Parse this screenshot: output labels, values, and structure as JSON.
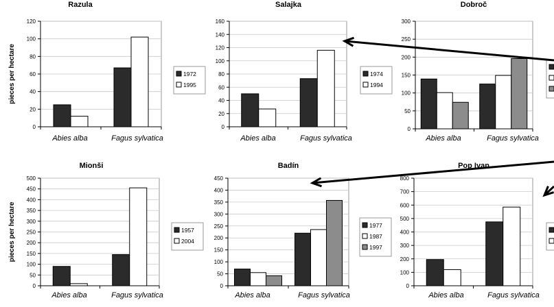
{
  "colors": {
    "s1": "#2b2b2b",
    "s2": "#ffffff",
    "s3": "#8c8c8c",
    "black": "#000000",
    "plot_bg": "#ffffff",
    "grid": "#c8c8c8"
  },
  "chart_data": [
    {
      "type": "bar",
      "title": "Razula",
      "ylabel": "pieces per hectare",
      "categories": [
        "Abies alba",
        "Fagus sylvatica"
      ],
      "ylim": [
        0,
        120
      ],
      "ystep": 20,
      "series": [
        {
          "name": "1972",
          "values": [
            25,
            67
          ]
        },
        {
          "name": "1995",
          "values": [
            12,
            102
          ]
        }
      ]
    },
    {
      "type": "bar",
      "title": "Salajka",
      "ylabel": "",
      "categories": [
        "Abies alba",
        "Fagus sylvatica"
      ],
      "ylim": [
        0,
        160
      ],
      "ystep": 20,
      "series": [
        {
          "name": "1974",
          "values": [
            50,
            73
          ]
        },
        {
          "name": "1994",
          "values": [
            27,
            116
          ]
        }
      ]
    },
    {
      "type": "bar",
      "title": "Dobroč",
      "ylabel": "",
      "categories": [
        "Abies alba",
        "Fagus sylvatica"
      ],
      "ylim": [
        0,
        300
      ],
      "ystep": 50,
      "series": [
        {
          "name": "",
          "values": [
            139,
            125
          ]
        },
        {
          "name": "",
          "values": [
            101,
            149
          ]
        },
        {
          "name": "",
          "values": [
            74,
            196
          ]
        }
      ]
    },
    {
      "type": "bar",
      "title": "Mionši",
      "ylabel": "pieces per hectare",
      "categories": [
        "Abies alba",
        "Fagus sylvatica"
      ],
      "ylim": [
        0,
        500
      ],
      "ystep": 50,
      "series": [
        {
          "name": "1957",
          "values": [
            90,
            145
          ]
        },
        {
          "name": "2004",
          "values": [
            10,
            455
          ]
        }
      ]
    },
    {
      "type": "bar",
      "title": "Badín",
      "ylabel": "",
      "categories": [
        "Abies alba",
        "Fagus sylvatica"
      ],
      "ylim": [
        0,
        450
      ],
      "ystep": 50,
      "series": [
        {
          "name": "1977",
          "values": [
            70,
            220
          ]
        },
        {
          "name": "1987",
          "values": [
            55,
            235
          ]
        },
        {
          "name": "1997",
          "values": [
            42,
            357
          ]
        }
      ]
    },
    {
      "type": "bar",
      "title": "Pop Ivan",
      "ylabel": "",
      "categories": [
        "Abies alba",
        "Fagus sylvatica"
      ],
      "ylim": [
        0,
        800
      ],
      "ystep": 100,
      "series": [
        {
          "name": "",
          "values": [
            195,
            475
          ]
        },
        {
          "name": "",
          "values": [
            120,
            585
          ]
        }
      ]
    }
  ]
}
